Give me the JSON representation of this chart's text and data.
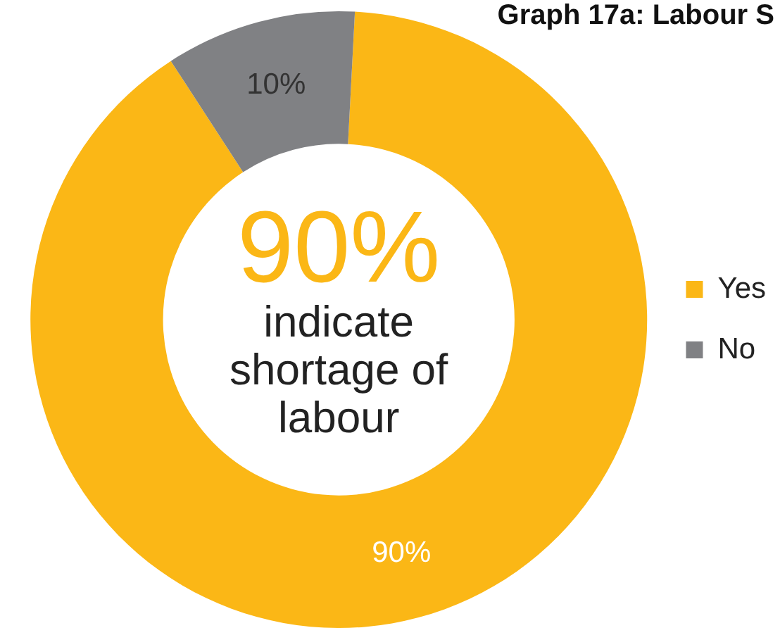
{
  "chart_data": {
    "type": "donut",
    "title": "Graph 17a: Labour S",
    "categories": [
      "Yes",
      "No"
    ],
    "values": [
      90,
      10
    ],
    "colors": [
      "#fbb716",
      "#808184"
    ],
    "value_labels": [
      "90%",
      "10%"
    ],
    "annotations": [
      "90%",
      "indicate shortage of labour"
    ],
    "legend": "right"
  }
}
